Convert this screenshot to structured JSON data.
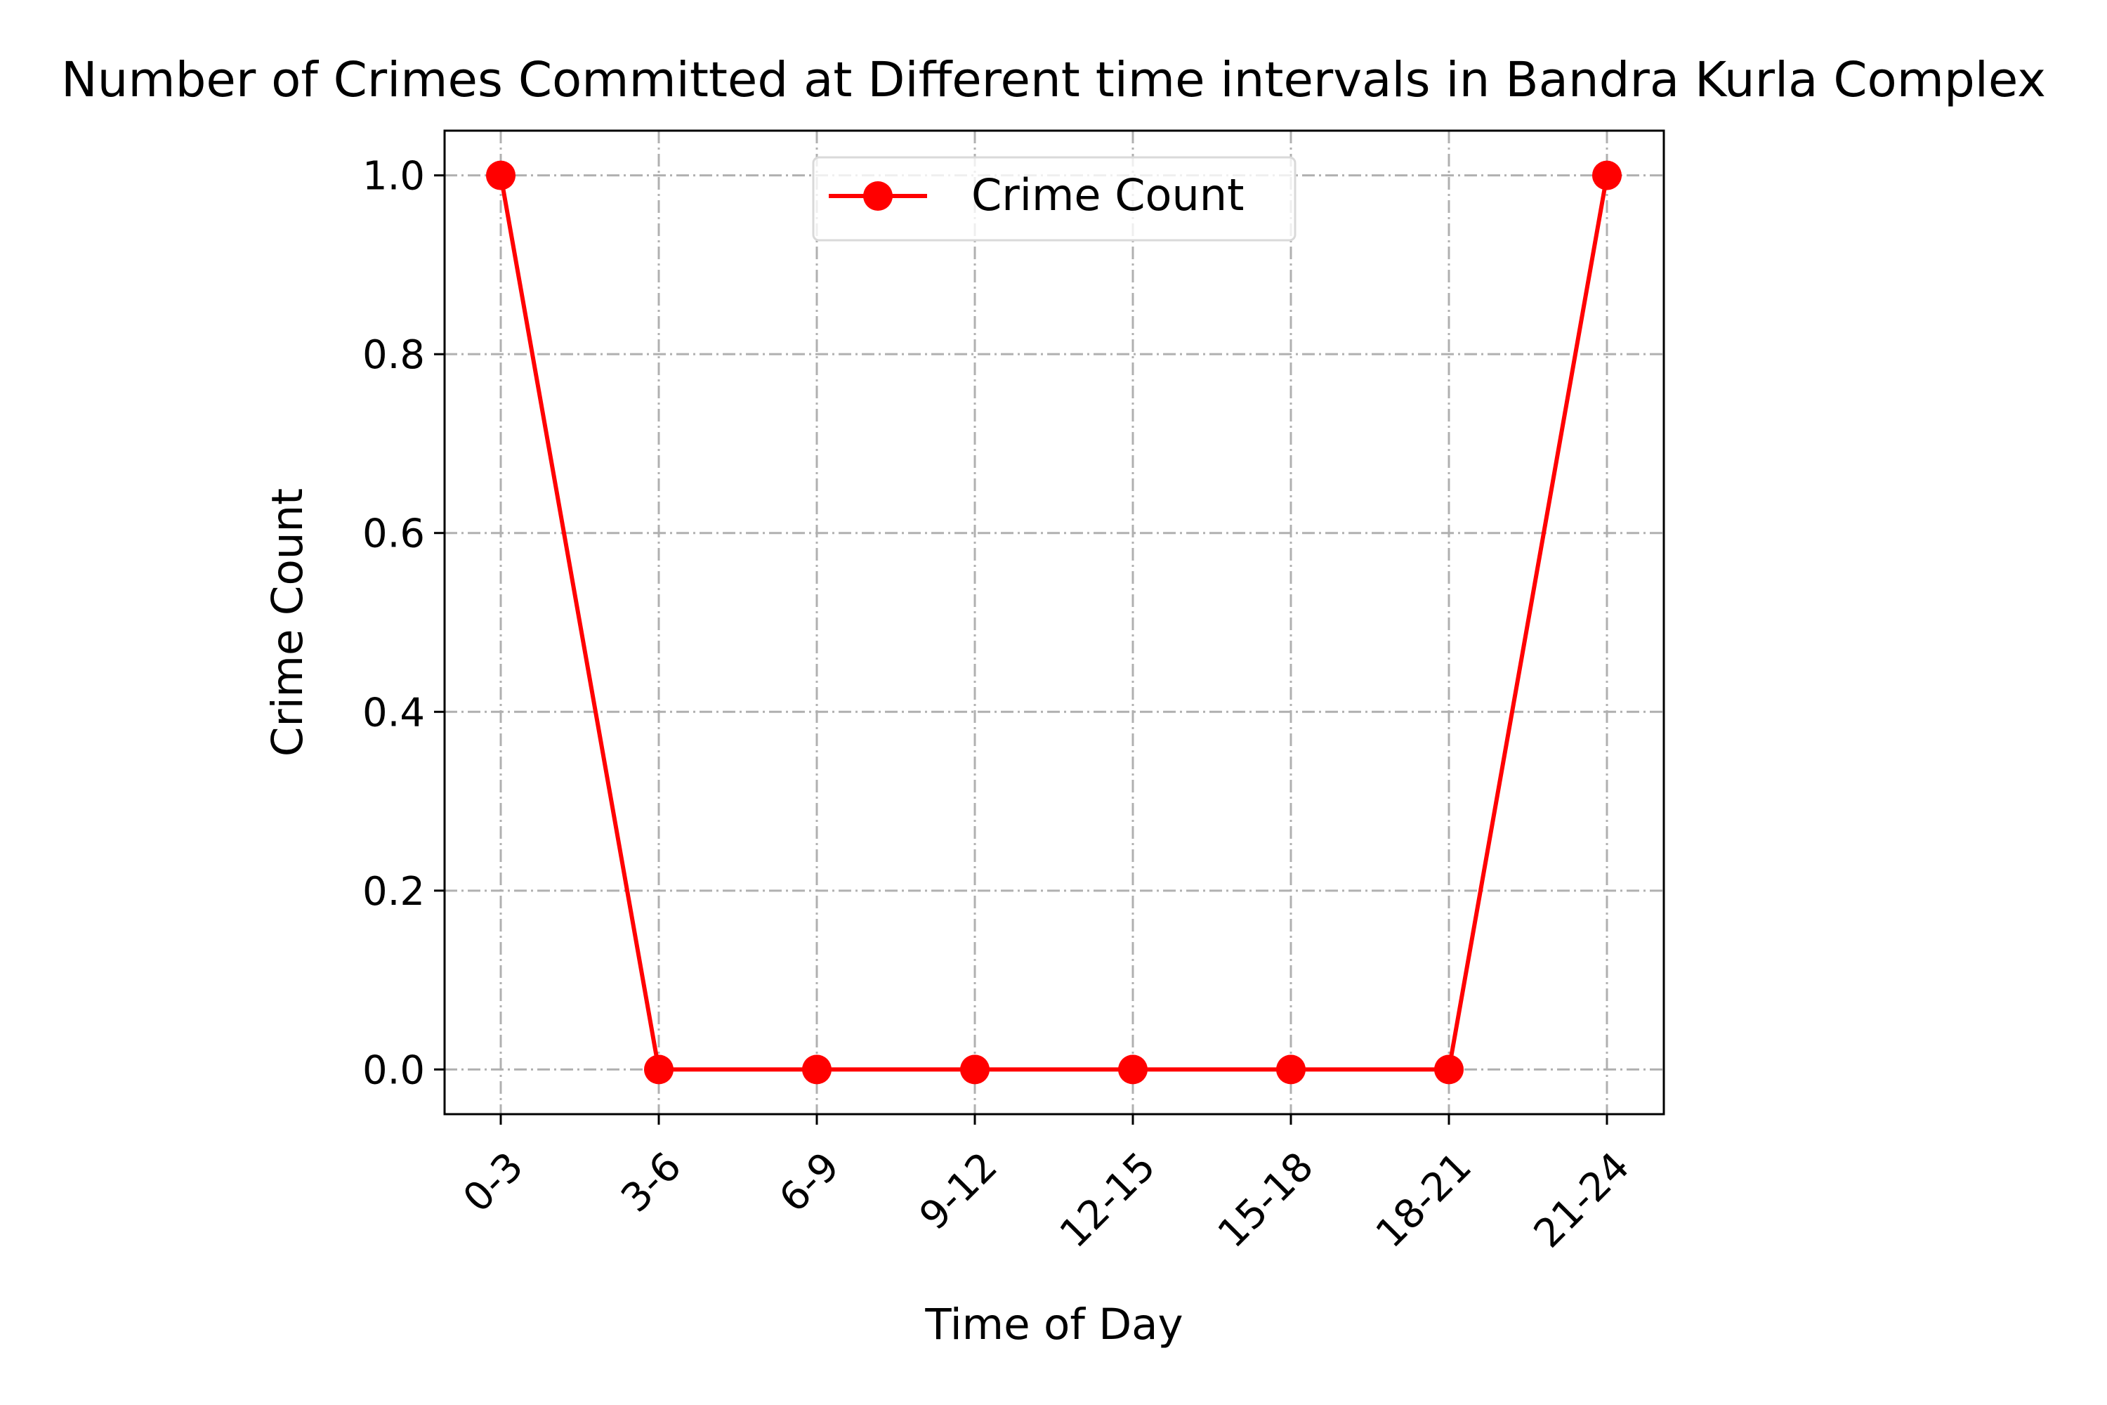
{
  "chart_data": {
    "type": "line",
    "title": "Number of Crimes Committed at Different time intervals in Bandra Kurla Complex",
    "xlabel": "Time of Day",
    "ylabel": "Crime Count",
    "categories": [
      "0-3",
      "3-6",
      "6-9",
      "9-12",
      "12-15",
      "15-18",
      "18-21",
      "21-24"
    ],
    "series": [
      {
        "name": "Crime Count",
        "values": [
          1,
          0,
          0,
          0,
          0,
          0,
          0,
          1
        ],
        "color": "#ff0000",
        "marker": "circle"
      }
    ],
    "ylim": [
      -0.05,
      1.05
    ],
    "yticks": [
      "0.0",
      "0.2",
      "0.4",
      "0.6",
      "0.8",
      "1.0"
    ],
    "ytick_values": [
      0,
      0.2,
      0.4,
      0.6,
      0.8,
      1.0
    ],
    "xtick_rotation": 45,
    "grid": true,
    "grid_style": "dash-dot",
    "legend_position": "upper center"
  }
}
